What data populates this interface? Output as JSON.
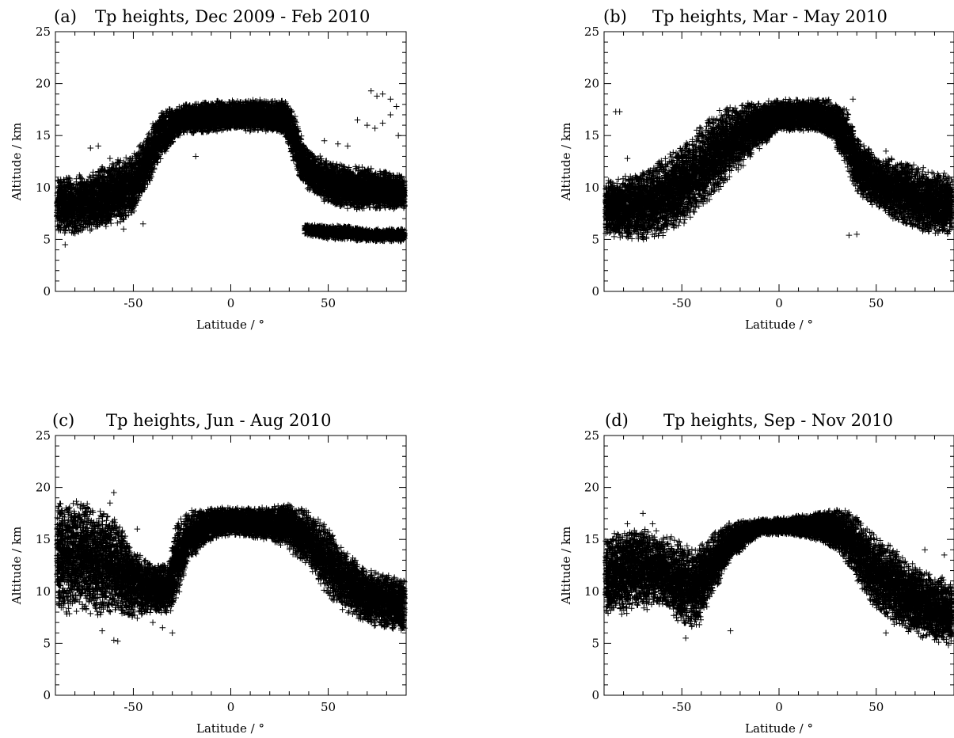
{
  "figure": {
    "panels": [
      {
        "letter": "(a)",
        "title": "Tp heights, Dec 2009 - Feb 2010"
      },
      {
        "letter": "(b)",
        "title": "Tp heights, Mar - May 2010"
      },
      {
        "letter": "(c)",
        "title": "Tp heights, Jun - Aug 2010"
      },
      {
        "letter": "(d)",
        "title": "Tp heights, Sep - Nov 2010"
      }
    ],
    "marker_color": "#000000"
  },
  "chart_data": [
    {
      "type": "scatter",
      "title": "Tp heights, Dec 2009 - Feb 2010",
      "xlabel": "Latitude / °",
      "ylabel": "Altitude / km",
      "xlim": [
        -90,
        90
      ],
      "ylim": [
        0,
        25
      ],
      "xticks": [
        -50,
        0,
        50
      ],
      "yticks": [
        0,
        5,
        10,
        15,
        20,
        25
      ],
      "marker": "+",
      "bands": [
        {
          "x": [
            -90,
            -80,
            -70,
            -60,
            -50,
            -42,
            -35,
            -25,
            0,
            20,
            28,
            33,
            38,
            50,
            60,
            70,
            80,
            90
          ],
          "y_low": [
            6.0,
            5.5,
            6.0,
            6.5,
            7.5,
            10.5,
            13.0,
            15.2,
            15.5,
            15.5,
            15.0,
            12.0,
            10.0,
            8.5,
            8.0,
            8.0,
            8.0,
            8.0
          ],
          "y_high": [
            11.0,
            11.0,
            11.5,
            12.5,
            13.0,
            15.5,
            17.3,
            18.0,
            18.4,
            18.4,
            18.3,
            17.0,
            14.0,
            12.5,
            12.0,
            11.8,
            11.5,
            11.0
          ],
          "density": 0.95
        },
        {
          "x": [
            38,
            50,
            60,
            70,
            80,
            90
          ],
          "y_low": [
            5.5,
            5.0,
            5.0,
            4.8,
            4.8,
            4.8
          ],
          "y_high": [
            6.5,
            6.3,
            6.3,
            6.0,
            6.0,
            6.0
          ],
          "density": 0.5
        }
      ],
      "outliers": [
        [
          72,
          19.3
        ],
        [
          75,
          18.8
        ],
        [
          78,
          19.0
        ],
        [
          82,
          18.5
        ],
        [
          85,
          17.8
        ],
        [
          65,
          16.5
        ],
        [
          70,
          16.0
        ],
        [
          74,
          15.7
        ],
        [
          78,
          16.2
        ],
        [
          82,
          17.0
        ],
        [
          86,
          15.0
        ],
        [
          55,
          14.2
        ],
        [
          60,
          14.0
        ],
        [
          48,
          14.5
        ],
        [
          -72,
          13.8
        ],
        [
          -68,
          14.0
        ],
        [
          -62,
          12.8
        ],
        [
          -18,
          13.0
        ],
        [
          -85,
          4.5
        ],
        [
          -55,
          6.0
        ],
        [
          -45,
          6.5
        ]
      ]
    },
    {
      "type": "scatter",
      "title": "Tp heights, Mar - May 2010",
      "xlabel": "Latitude / °",
      "ylabel": "Altitude / km",
      "xlim": [
        -90,
        90
      ],
      "ylim": [
        0,
        25
      ],
      "xticks": [
        -50,
        0,
        50
      ],
      "yticks": [
        0,
        5,
        10,
        15,
        20,
        25
      ],
      "marker": "+",
      "bands": [
        {
          "x": [
            -90,
            -80,
            -70,
            -60,
            -50,
            -40,
            -30,
            -20,
            0,
            20,
            28,
            35,
            40,
            50,
            60,
            70,
            80,
            90
          ],
          "y_low": [
            5.5,
            5.0,
            5.0,
            5.5,
            6.5,
            8.0,
            10.0,
            12.0,
            15.5,
            15.5,
            14.5,
            12.0,
            9.5,
            8.0,
            7.0,
            6.0,
            5.5,
            5.5
          ],
          "y_high": [
            10.5,
            11.0,
            11.5,
            12.5,
            14.0,
            16.0,
            17.3,
            18.0,
            18.4,
            18.4,
            18.3,
            17.5,
            15.0,
            13.0,
            12.5,
            12.0,
            11.5,
            11.0
          ],
          "density": 0.95
        }
      ],
      "outliers": [
        [
          -84,
          17.3
        ],
        [
          -82,
          17.3
        ],
        [
          -78,
          12.8
        ],
        [
          -75,
          10.0
        ],
        [
          36,
          5.4
        ],
        [
          40,
          5.5
        ],
        [
          38,
          18.5
        ],
        [
          55,
          13.5
        ]
      ]
    },
    {
      "type": "scatter",
      "title": "Tp heights, Jun - Aug 2010",
      "xlabel": "Latitude / °",
      "ylabel": "Altitude / km",
      "xlim": [
        -90,
        90
      ],
      "ylim": [
        0,
        25
      ],
      "xticks": [
        -50,
        0,
        50
      ],
      "yticks": [
        0,
        5,
        10,
        15,
        20,
        25
      ],
      "marker": "+",
      "bands": [
        {
          "x": [
            -90,
            -80,
            -70,
            -60,
            -50,
            -40,
            -32,
            -28,
            -22,
            -10,
            0,
            20,
            30,
            40,
            50,
            60,
            70,
            80,
            90
          ],
          "y_low": [
            8.0,
            8.0,
            8.0,
            8.0,
            7.5,
            8.0,
            8.0,
            9.0,
            13.0,
            15.0,
            15.5,
            15.0,
            14.0,
            12.5,
            9.5,
            8.0,
            7.0,
            6.5,
            6.0
          ],
          "y_high": [
            18.5,
            18.8,
            18.0,
            17.0,
            14.0,
            12.5,
            12.5,
            16.5,
            17.5,
            18.0,
            18.0,
            18.0,
            18.5,
            17.5,
            16.0,
            13.5,
            12.0,
            11.5,
            11.0
          ],
          "density": 0.95
        }
      ],
      "outliers": [
        [
          -66,
          6.2
        ],
        [
          -60,
          5.3
        ],
        [
          -58,
          5.2
        ],
        [
          -60,
          19.5
        ],
        [
          -62,
          18.5
        ],
        [
          -48,
          16.0
        ],
        [
          -40,
          7.0
        ],
        [
          -35,
          6.5
        ],
        [
          -30,
          6.0
        ],
        [
          -20,
          17.8
        ]
      ]
    },
    {
      "type": "scatter",
      "title": "Tp heights, Sep - Nov 2010",
      "xlabel": "Latitude / °",
      "ylabel": "Altitude / km",
      "xlim": [
        -90,
        90
      ],
      "ylim": [
        0,
        25
      ],
      "xticks": [
        -50,
        0,
        50
      ],
      "yticks": [
        0,
        5,
        10,
        15,
        20,
        25
      ],
      "marker": "+",
      "bands": [
        {
          "x": [
            -90,
            -80,
            -70,
            -60,
            -50,
            -42,
            -35,
            -25,
            -10,
            0,
            20,
            30,
            38,
            45,
            55,
            65,
            75,
            85,
            90
          ],
          "y_low": [
            8.0,
            8.0,
            8.5,
            8.5,
            7.0,
            6.5,
            9.5,
            13.0,
            15.5,
            15.5,
            15.0,
            14.0,
            12.0,
            9.0,
            7.5,
            6.5,
            5.5,
            5.0,
            5.0
          ],
          "y_high": [
            15.5,
            15.8,
            16.0,
            15.5,
            14.5,
            14.0,
            15.5,
            16.5,
            17.0,
            17.0,
            17.5,
            18.0,
            17.5,
            16.0,
            14.5,
            13.0,
            12.0,
            11.0,
            10.5
          ],
          "density": 0.95
        }
      ],
      "outliers": [
        [
          -70,
          17.5
        ],
        [
          -65,
          16.5
        ],
        [
          -78,
          16.5
        ],
        [
          -25,
          6.2
        ],
        [
          -48,
          5.5
        ],
        [
          75,
          14.0
        ],
        [
          85,
          13.5
        ],
        [
          55,
          6.0
        ]
      ]
    }
  ]
}
